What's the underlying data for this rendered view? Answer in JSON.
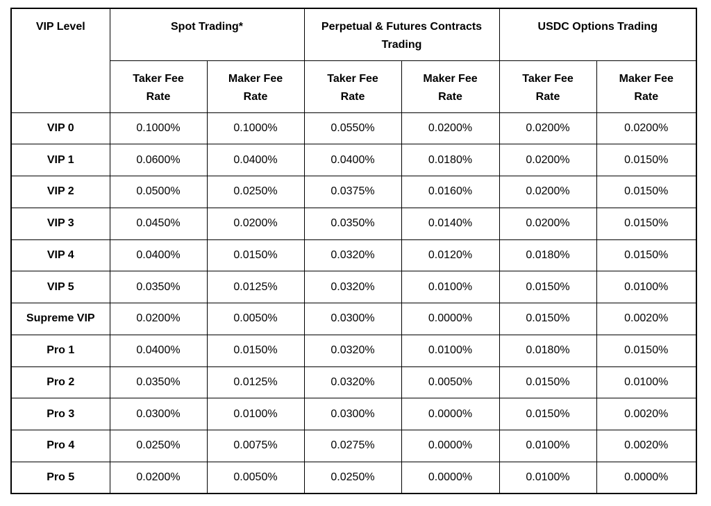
{
  "chart_data": {
    "type": "table",
    "header": {
      "vip_level": "VIP Level",
      "groups": [
        {
          "label": "Spot Trading*"
        },
        {
          "label": "Perpetual & Futures Contracts Trading"
        },
        {
          "label": "USDC Options Trading"
        }
      ],
      "sub_columns": [
        "Taker Fee Rate",
        "Maker Fee Rate"
      ]
    },
    "rows": [
      {
        "level": "VIP 0",
        "values": [
          "0.1000%",
          "0.1000%",
          "0.0550%",
          "0.0200%",
          "0.0200%",
          "0.0200%"
        ]
      },
      {
        "level": "VIP 1",
        "values": [
          "0.0600%",
          "0.0400%",
          "0.0400%",
          "0.0180%",
          "0.0200%",
          "0.0150%"
        ]
      },
      {
        "level": "VIP 2",
        "values": [
          "0.0500%",
          "0.0250%",
          "0.0375%",
          "0.0160%",
          "0.0200%",
          "0.0150%"
        ]
      },
      {
        "level": "VIP 3",
        "values": [
          "0.0450%",
          "0.0200%",
          "0.0350%",
          "0.0140%",
          "0.0200%",
          "0.0150%"
        ]
      },
      {
        "level": "VIP 4",
        "values": [
          "0.0400%",
          "0.0150%",
          "0.0320%",
          "0.0120%",
          "0.0180%",
          "0.0150%"
        ]
      },
      {
        "level": "VIP 5",
        "values": [
          "0.0350%",
          "0.0125%",
          "0.0320%",
          "0.0100%",
          "0.0150%",
          "0.0100%"
        ]
      },
      {
        "level": "Supreme VIP",
        "values": [
          "0.0200%",
          "0.0050%",
          "0.0300%",
          "0.0000%",
          "0.0150%",
          "0.0020%"
        ]
      },
      {
        "level": "Pro 1",
        "values": [
          "0.0400%",
          "0.0150%",
          "0.0320%",
          "0.0100%",
          "0.0180%",
          "0.0150%"
        ]
      },
      {
        "level": "Pro 2",
        "values": [
          "0.0350%",
          "0.0125%",
          "0.0320%",
          "0.0050%",
          "0.0150%",
          "0.0100%"
        ]
      },
      {
        "level": "Pro 3",
        "values": [
          "0.0300%",
          "0.0100%",
          "0.0300%",
          "0.0000%",
          "0.0150%",
          "0.0020%"
        ]
      },
      {
        "level": "Pro 4",
        "values": [
          "0.0250%",
          "0.0075%",
          "0.0275%",
          "0.0000%",
          "0.0100%",
          "0.0020%"
        ]
      },
      {
        "level": "Pro 5",
        "values": [
          "0.0200%",
          "0.0050%",
          "0.0250%",
          "0.0000%",
          "0.0100%",
          "0.0000%"
        ]
      }
    ],
    "layout": {
      "border_color": "#000000",
      "background_color": "#ffffff",
      "text_color": "#000000"
    }
  }
}
